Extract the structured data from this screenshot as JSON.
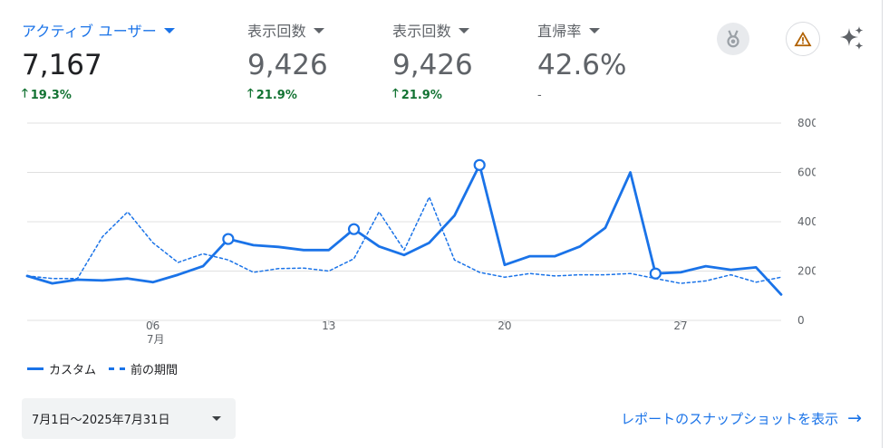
{
  "metrics": [
    {
      "label": "アクティブ ユーザー",
      "value": "7,167",
      "delta": "19.3%",
      "active": true
    },
    {
      "label": "表示回数",
      "value": "9,426",
      "delta": "21.9%",
      "active": false
    },
    {
      "label": "表示回数",
      "value": "9,426",
      "delta": "21.9%",
      "active": false
    },
    {
      "label": "直帰率",
      "value": "42.6%",
      "delta": "-",
      "active": false
    }
  ],
  "icons": {
    "badge": "medal-icon",
    "warning": "warning-icon",
    "insights": "sparkle-icon"
  },
  "colors": {
    "accent": "#1a73e8",
    "positive": "#137333",
    "warning": "#b06000",
    "grid": "#e0e0e0",
    "axis_text": "#5f6368"
  },
  "legend": {
    "current": "カスタム",
    "previous": "前の期間"
  },
  "date_range": "7月1日〜2025年7月31日",
  "snapshot_link": "レポートのスナップショットを表示",
  "chart_data": {
    "type": "line",
    "x": [
      1,
      2,
      3,
      4,
      5,
      6,
      7,
      8,
      9,
      10,
      11,
      12,
      13,
      14,
      15,
      16,
      17,
      18,
      19,
      20,
      21,
      22,
      23,
      24,
      25,
      26,
      27,
      28,
      29,
      30,
      31
    ],
    "x_ticks": [
      {
        "value": 6,
        "label": "06",
        "sublabel": "7月"
      },
      {
        "value": 13,
        "label": "13"
      },
      {
        "value": 20,
        "label": "20"
      },
      {
        "value": 27,
        "label": "27"
      }
    ],
    "y_ticks": [
      0,
      200,
      400,
      600,
      800
    ],
    "ylim": [
      0,
      800
    ],
    "grid": true,
    "y_axis_position": "right",
    "series": [
      {
        "name": "カスタム",
        "style": "solid",
        "values": [
          180,
          150,
          165,
          162,
          170,
          155,
          185,
          220,
          330,
          305,
          298,
          285,
          285,
          370,
          300,
          265,
          315,
          425,
          630,
          225,
          260,
          260,
          300,
          375,
          600,
          190,
          195,
          220,
          205,
          215,
          105
        ],
        "markers": [
          9,
          14,
          19,
          26
        ]
      },
      {
        "name": "前の期間",
        "style": "dashed",
        "values": [
          180,
          170,
          170,
          340,
          440,
          315,
          235,
          270,
          245,
          195,
          210,
          212,
          200,
          250,
          440,
          285,
          500,
          245,
          195,
          175,
          190,
          180,
          185,
          185,
          190,
          170,
          150,
          160,
          185,
          155,
          175
        ]
      }
    ]
  }
}
